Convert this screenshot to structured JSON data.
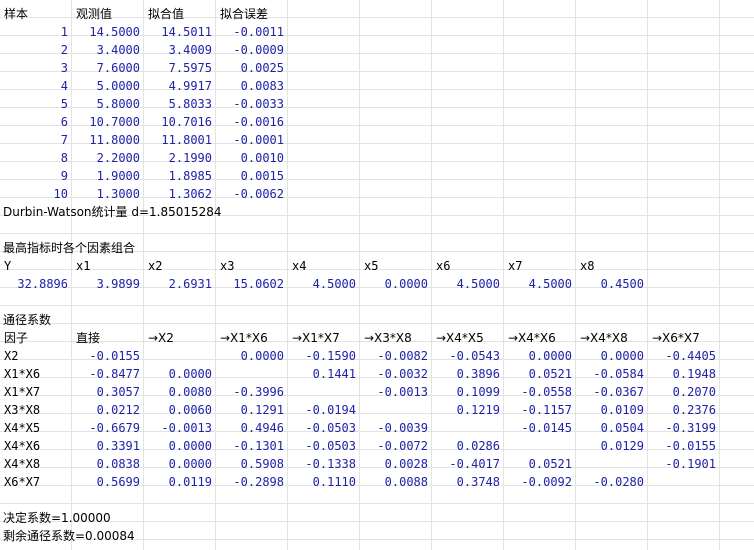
{
  "fit_table": {
    "headers": [
      "样本",
      "观测值",
      "拟合值",
      "拟合误差"
    ],
    "rows": [
      [
        "1",
        "14.5000",
        "14.5011",
        "-0.0011"
      ],
      [
        "2",
        "3.4000",
        "3.4009",
        "-0.0009"
      ],
      [
        "3",
        "7.6000",
        "7.5975",
        "0.0025"
      ],
      [
        "4",
        "5.0000",
        "4.9917",
        "0.0083"
      ],
      [
        "5",
        "5.8000",
        "5.8033",
        "-0.0033"
      ],
      [
        "6",
        "10.7000",
        "10.7016",
        "-0.0016"
      ],
      [
        "7",
        "11.8000",
        "11.8001",
        "-0.0001"
      ],
      [
        "8",
        "2.2000",
        "2.1990",
        "0.0010"
      ],
      [
        "9",
        "1.9000",
        "1.8985",
        "0.0015"
      ],
      [
        "10",
        "1.3000",
        "1.3062",
        "-0.0062"
      ]
    ]
  },
  "dw_text": "Durbin-Watson统计量 d=1.85015284",
  "optimum": {
    "title": "最高指标时各个因素组合",
    "headers": [
      "Y",
      "x1",
      "x2",
      "x3",
      "x4",
      "x5",
      "x6",
      "x7",
      "x8"
    ],
    "values": [
      "32.8896",
      "3.9899",
      "2.6931",
      "15.0602",
      "4.5000",
      "0.0000",
      "4.5000",
      "4.5000",
      "0.4500"
    ]
  },
  "path": {
    "title": "通径系数",
    "headers": [
      "因子",
      "直接",
      "→X2",
      "→X1*X6",
      "→X1*X7",
      "→X3*X8",
      "→X4*X5",
      "→X4*X6",
      "→X4*X8",
      "→X6*X7"
    ],
    "rows": [
      [
        "X2",
        "-0.0155",
        "",
        "0.0000",
        "-0.1590",
        "-0.0082",
        "-0.0543",
        "0.0000",
        "0.0000",
        "-0.4405"
      ],
      [
        "X1*X6",
        "-0.8477",
        "0.0000",
        "",
        "0.1441",
        "-0.0032",
        "0.3896",
        "0.0521",
        "-0.0584",
        "0.1948"
      ],
      [
        "X1*X7",
        "0.3057",
        "0.0080",
        "-0.3996",
        "",
        "-0.0013",
        "0.1099",
        "-0.0558",
        "-0.0367",
        "0.2070"
      ],
      [
        "X3*X8",
        "0.0212",
        "0.0060",
        "0.1291",
        "-0.0194",
        "",
        "0.1219",
        "-0.1157",
        "0.0109",
        "0.2376"
      ],
      [
        "X4*X5",
        "-0.6679",
        "-0.0013",
        "0.4946",
        "-0.0503",
        "-0.0039",
        "",
        "-0.0145",
        "0.0504",
        "-0.3199"
      ],
      [
        "X4*X6",
        "0.3391",
        "0.0000",
        "-0.1301",
        "-0.0503",
        "-0.0072",
        "0.0286",
        "",
        "0.0129",
        "-0.0155"
      ],
      [
        "X4*X8",
        "0.0838",
        "0.0000",
        "0.5908",
        "-0.1338",
        "0.0028",
        "-0.4017",
        "0.0521",
        "",
        "-0.1901"
      ],
      [
        "X6*X7",
        "0.5699",
        "0.0119",
        "-0.2898",
        "0.1110",
        "0.0088",
        "0.3748",
        "-0.0092",
        "-0.0280",
        ""
      ]
    ]
  },
  "r2_text": "决定系数=1.00000",
  "residual_text": "剩余通径系数=0.00084"
}
